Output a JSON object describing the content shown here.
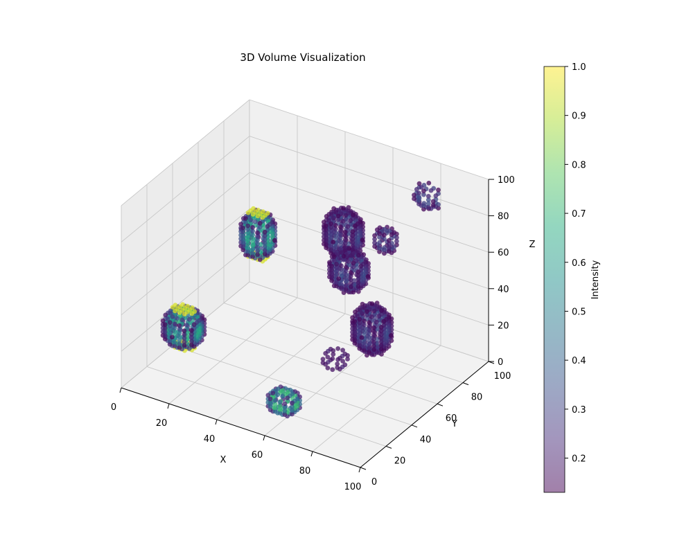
{
  "chart_data": {
    "type": "scatter",
    "projection": "3d",
    "title": "3D Volume Visualization",
    "xlabel": "X",
    "ylabel": "Y",
    "zlabel": "Z",
    "xlim": [
      0,
      100
    ],
    "ylim": [
      0,
      100
    ],
    "zlim": [
      0,
      100
    ],
    "x_ticks": [
      0,
      20,
      40,
      60,
      80,
      100
    ],
    "y_ticks": [
      0,
      20,
      40,
      60,
      80,
      100
    ],
    "z_ticks": [
      0,
      20,
      40,
      60,
      80,
      100
    ],
    "grid": true,
    "colormap": "viridis",
    "alpha": 0.5,
    "colorbar": {
      "label": "Intensity",
      "min": 0.13,
      "max": 1.0,
      "ticks": [
        0.2,
        0.3,
        0.4,
        0.5,
        0.6,
        0.7,
        0.8,
        0.9,
        1.0
      ]
    },
    "blobs": [
      {
        "center": [
          10,
          30,
          20
        ],
        "radii": [
          8,
          9,
          12
        ],
        "peak_intensity": 1.0
      },
      {
        "center": [
          25,
          60,
          60
        ],
        "radii": [
          7,
          8,
          14
        ],
        "peak_intensity": 1.0
      },
      {
        "center": [
          60,
          15,
          10
        ],
        "radii": [
          7,
          7,
          7
        ],
        "peak_intensity": 1.0
      },
      {
        "center": [
          50,
          80,
          60
        ],
        "radii": [
          8,
          8,
          14
        ],
        "peak_intensity": 0.45
      },
      {
        "center": [
          55,
          75,
          45
        ],
        "radii": [
          8,
          8,
          12
        ],
        "peak_intensity": 0.45
      },
      {
        "center": [
          70,
          65,
          25
        ],
        "radii": [
          8,
          8,
          14
        ],
        "peak_intensity": 0.45
      },
      {
        "center": [
          60,
          55,
          10
        ],
        "radii": [
          5,
          6,
          5
        ],
        "peak_intensity": 0.4
      },
      {
        "center": [
          65,
          85,
          60
        ],
        "radii": [
          5,
          5,
          7
        ],
        "peak_intensity": 0.4
      },
      {
        "center": [
          75,
          100,
          80
        ],
        "radii": [
          6,
          6,
          7
        ],
        "peak_intensity": 0.45
      }
    ]
  }
}
